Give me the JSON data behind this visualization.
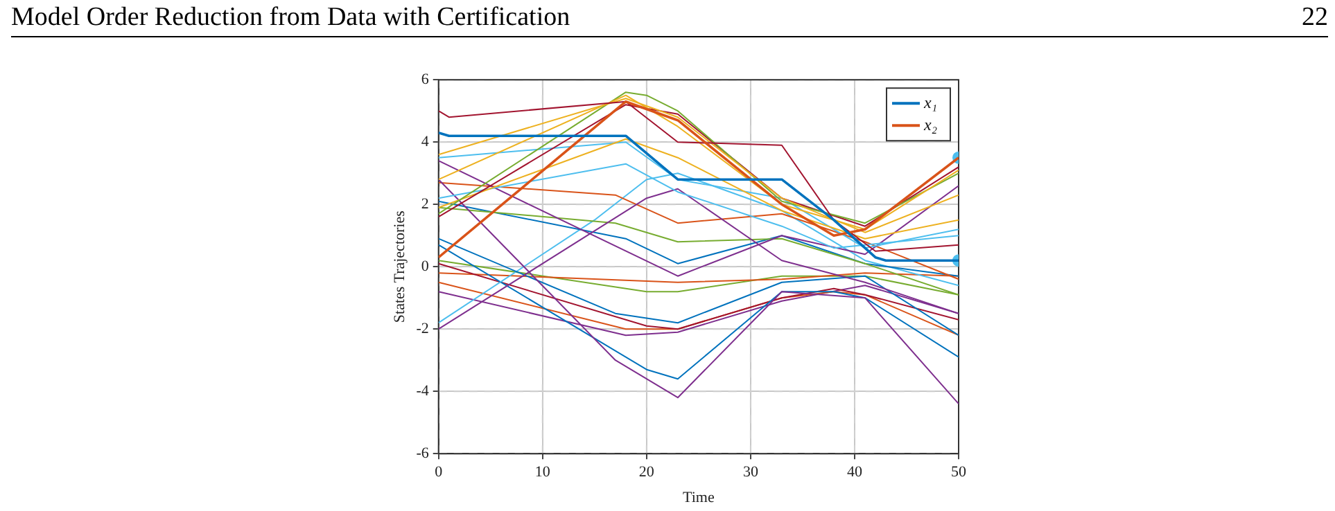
{
  "chart_data": {
    "type": "line",
    "title": "Model Order Reduction from Data with Certification",
    "annotations": [
      "22"
    ],
    "xlabel": "Time",
    "ylabel": "States Trajectories",
    "xlim": [
      0,
      50
    ],
    "xticks": [
      0,
      10,
      20,
      30,
      40,
      50
    ],
    "ylim": [
      -6,
      6
    ],
    "yticks": [
      -6,
      -4,
      -2,
      0,
      2,
      4,
      6
    ],
    "grid": true,
    "legend": "top right",
    "marker": "none",
    "line_style": "solid",
    "series": [
      {
        "name": "x₁",
        "color": "#0072bd",
        "x": [
          0,
          1,
          18,
          23,
          33,
          38,
          42,
          43,
          50
        ],
        "values": [
          4.3,
          4.2,
          4.2,
          2.8,
          2.8,
          1.5,
          0.3,
          0.2,
          0.2
        ]
      },
      {
        "name": "x₂",
        "color": "#d95319",
        "x": [
          0,
          18,
          23,
          33,
          38,
          41,
          50
        ],
        "values": [
          0.3,
          5.3,
          4.7,
          2.0,
          1.0,
          1.2,
          3.5
        ]
      },
      {
        "color": "#a2142f",
        "x": [
          0,
          1,
          18,
          23,
          33,
          38,
          42,
          50
        ],
        "values": [
          5.0,
          4.8,
          5.3,
          4.0,
          3.9,
          1.5,
          0.5,
          0.7
        ]
      },
      {
        "color": "#edb120",
        "x": [
          0,
          18,
          23,
          33,
          41,
          50
        ],
        "values": [
          3.6,
          5.4,
          4.8,
          2.2,
          1.1,
          2.3
        ]
      },
      {
        "color": "#edb120",
        "x": [
          0,
          18,
          23,
          33,
          41,
          50
        ],
        "values": [
          2.8,
          5.5,
          4.5,
          2.0,
          1.2,
          3.1
        ]
      },
      {
        "color": "#77ac30",
        "x": [
          0,
          18,
          20,
          23,
          33,
          41,
          50
        ],
        "values": [
          1.7,
          5.6,
          5.5,
          5.0,
          2.1,
          1.4,
          3.0
        ]
      },
      {
        "color": "#a2142f",
        "x": [
          0,
          18,
          23,
          33,
          41,
          50
        ],
        "values": [
          1.6,
          5.2,
          4.9,
          2.2,
          1.3,
          3.2
        ]
      },
      {
        "color": "#edb120",
        "x": [
          0,
          18,
          23,
          33,
          41,
          50
        ],
        "values": [
          1.9,
          4.1,
          3.5,
          1.8,
          0.9,
          1.5
        ]
      },
      {
        "color": "#4dbeee",
        "x": [
          0,
          18,
          23,
          33,
          41,
          50
        ],
        "values": [
          3.5,
          4.0,
          2.8,
          2.2,
          0.6,
          1.2
        ]
      },
      {
        "color": "#4dbeee",
        "x": [
          0,
          18,
          23,
          33,
          38,
          41,
          50
        ],
        "values": [
          2.2,
          3.3,
          2.4,
          1.3,
          0.6,
          0.7,
          1.0
        ]
      },
      {
        "color": "#7e2f8e",
        "x": [
          0,
          23,
          33,
          41,
          50
        ],
        "values": [
          3.4,
          -0.3,
          1.0,
          0.4,
          2.6
        ]
      },
      {
        "color": "#7e2f8e",
        "x": [
          0,
          17,
          23,
          33,
          41,
          50
        ],
        "values": [
          2.8,
          -3.0,
          -4.2,
          -0.8,
          -1.0,
          -4.4
        ]
      },
      {
        "color": "#7e2f8e",
        "x": [
          0,
          20,
          23,
          33,
          41,
          50
        ],
        "values": [
          -2.0,
          2.2,
          2.5,
          0.2,
          -0.5,
          -1.5
        ]
      },
      {
        "color": "#d95319",
        "x": [
          0,
          17,
          23,
          33,
          41,
          50
        ],
        "values": [
          2.7,
          2.3,
          1.4,
          1.7,
          0.8,
          -0.4
        ]
      },
      {
        "color": "#77ac30",
        "x": [
          0,
          17,
          23,
          33,
          41,
          50
        ],
        "values": [
          1.9,
          1.4,
          0.8,
          0.9,
          0.1,
          -0.9
        ]
      },
      {
        "color": "#0072bd",
        "x": [
          0,
          18,
          23,
          33,
          41,
          50
        ],
        "values": [
          2.1,
          0.9,
          0.1,
          1.0,
          0.1,
          -0.3
        ]
      },
      {
        "color": "#0072bd",
        "x": [
          0,
          17,
          23,
          33,
          41,
          50
        ],
        "values": [
          0.9,
          -1.5,
          -1.8,
          -0.5,
          -0.3,
          -2.2
        ]
      },
      {
        "color": "#4dbeee",
        "x": [
          0,
          15,
          20,
          23,
          33,
          41,
          50
        ],
        "values": [
          -1.8,
          1.5,
          2.8,
          3.0,
          1.8,
          0.2,
          -0.6
        ]
      },
      {
        "color": "#0072bd",
        "x": [
          0,
          20,
          23,
          33,
          38,
          41,
          50
        ],
        "values": [
          0.7,
          -3.3,
          -3.6,
          -0.8,
          -0.8,
          -1.0,
          -2.9
        ]
      },
      {
        "color": "#a2142f",
        "x": [
          0,
          20,
          23,
          33,
          38,
          41,
          50
        ],
        "values": [
          0.1,
          -1.9,
          -2.0,
          -1.0,
          -0.7,
          -0.9,
          -1.7
        ]
      },
      {
        "color": "#d95319",
        "x": [
          0,
          23,
          33,
          41,
          50
        ],
        "values": [
          -0.2,
          -0.5,
          -0.4,
          -0.2,
          -0.3
        ]
      },
      {
        "color": "#d95319",
        "x": [
          0,
          18,
          23,
          33,
          38,
          41,
          50
        ],
        "values": [
          -0.5,
          -2.0,
          -2.0,
          -1.0,
          -0.8,
          -0.9,
          -2.2
        ]
      },
      {
        "color": "#7e2f8e",
        "x": [
          0,
          18,
          23,
          33,
          41,
          50
        ],
        "values": [
          -0.8,
          -2.2,
          -2.1,
          -1.1,
          -0.6,
          -1.5
        ]
      },
      {
        "color": "#77ac30",
        "x": [
          0,
          20,
          23,
          33,
          41,
          50
        ],
        "values": [
          0.2,
          -0.8,
          -0.8,
          -0.3,
          -0.3,
          -0.9
        ]
      },
      {
        "type": "scatter",
        "marker": "circle",
        "color": "#4dbeee",
        "x": [
          50,
          50
        ],
        "values": [
          3.5,
          0.2
        ]
      }
    ]
  }
}
